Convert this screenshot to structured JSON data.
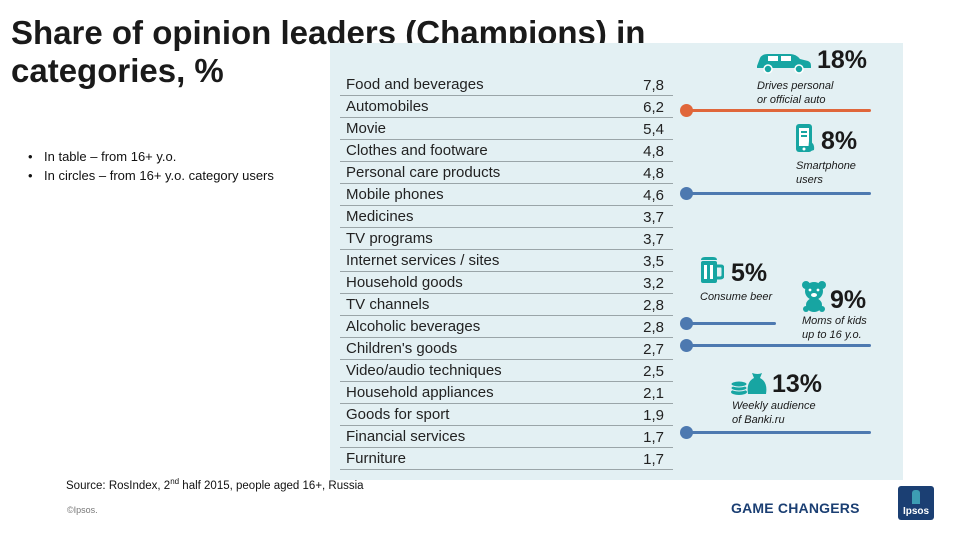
{
  "title": "Share of opinion leaders (Champions) in categories, %",
  "bullets": [
    "In table – from 16+ y.o.",
    "In circles – from 16+ y.o. category users"
  ],
  "table": [
    {
      "name": "Food and beverages",
      "value": "7,8"
    },
    {
      "name": "Automobiles",
      "value": "6,2"
    },
    {
      "name": "Movie",
      "value": "5,4"
    },
    {
      "name": "Clothes and footware",
      "value": "4,8"
    },
    {
      "name": "Personal care products",
      "value": "4,8"
    },
    {
      "name": "Mobile phones",
      "value": "4,6"
    },
    {
      "name": "Medicines",
      "value": "3,7"
    },
    {
      "name": "TV programs",
      "value": "3,7"
    },
    {
      "name": "Internet services / sites",
      "value": "3,5"
    },
    {
      "name": "Household goods",
      "value": "3,2"
    },
    {
      "name": "TV channels",
      "value": "2,8"
    },
    {
      "name": "Alcoholic beverages",
      "value": "2,8"
    },
    {
      "name": "Children's goods",
      "value": "2,7"
    },
    {
      "name": "Video/audio techniques",
      "value": "2,5"
    },
    {
      "name": "Household appliances",
      "value": "2,1"
    },
    {
      "name": "Goods for sport",
      "value": "1,9"
    },
    {
      "name": "Financial services",
      "value": "1,7"
    },
    {
      "name": "Furniture",
      "value": "1,7"
    }
  ],
  "stats": {
    "auto": {
      "pct": "18%",
      "line1": "Drives personal",
      "line2": "or official auto"
    },
    "phone": {
      "pct": "8%",
      "line1": "Smartphone",
      "line2": "users"
    },
    "beer": {
      "pct": "5%",
      "line1": "Consume beer"
    },
    "moms": {
      "pct": "9%",
      "line1": "Moms of kids",
      "line2": "up to 16 y.o."
    },
    "banki": {
      "pct": "13%",
      "line1": "Weekly audience",
      "line2": "of Banki.ru"
    }
  },
  "source_pre": "Source: RosIndex, 2",
  "source_sup": "nd",
  "source_post": " half 2015, people aged 16+, Russia",
  "copyright": "©Ipsos.",
  "footer_brand": "GAME CHANGERS",
  "logo_text": "Ipsos",
  "colors": {
    "orange": "#e0663a",
    "blue": "#4d79b0",
    "teal": "#17a5a2",
    "panel": "#e3f0f3",
    "navy": "#1b3f73"
  }
}
